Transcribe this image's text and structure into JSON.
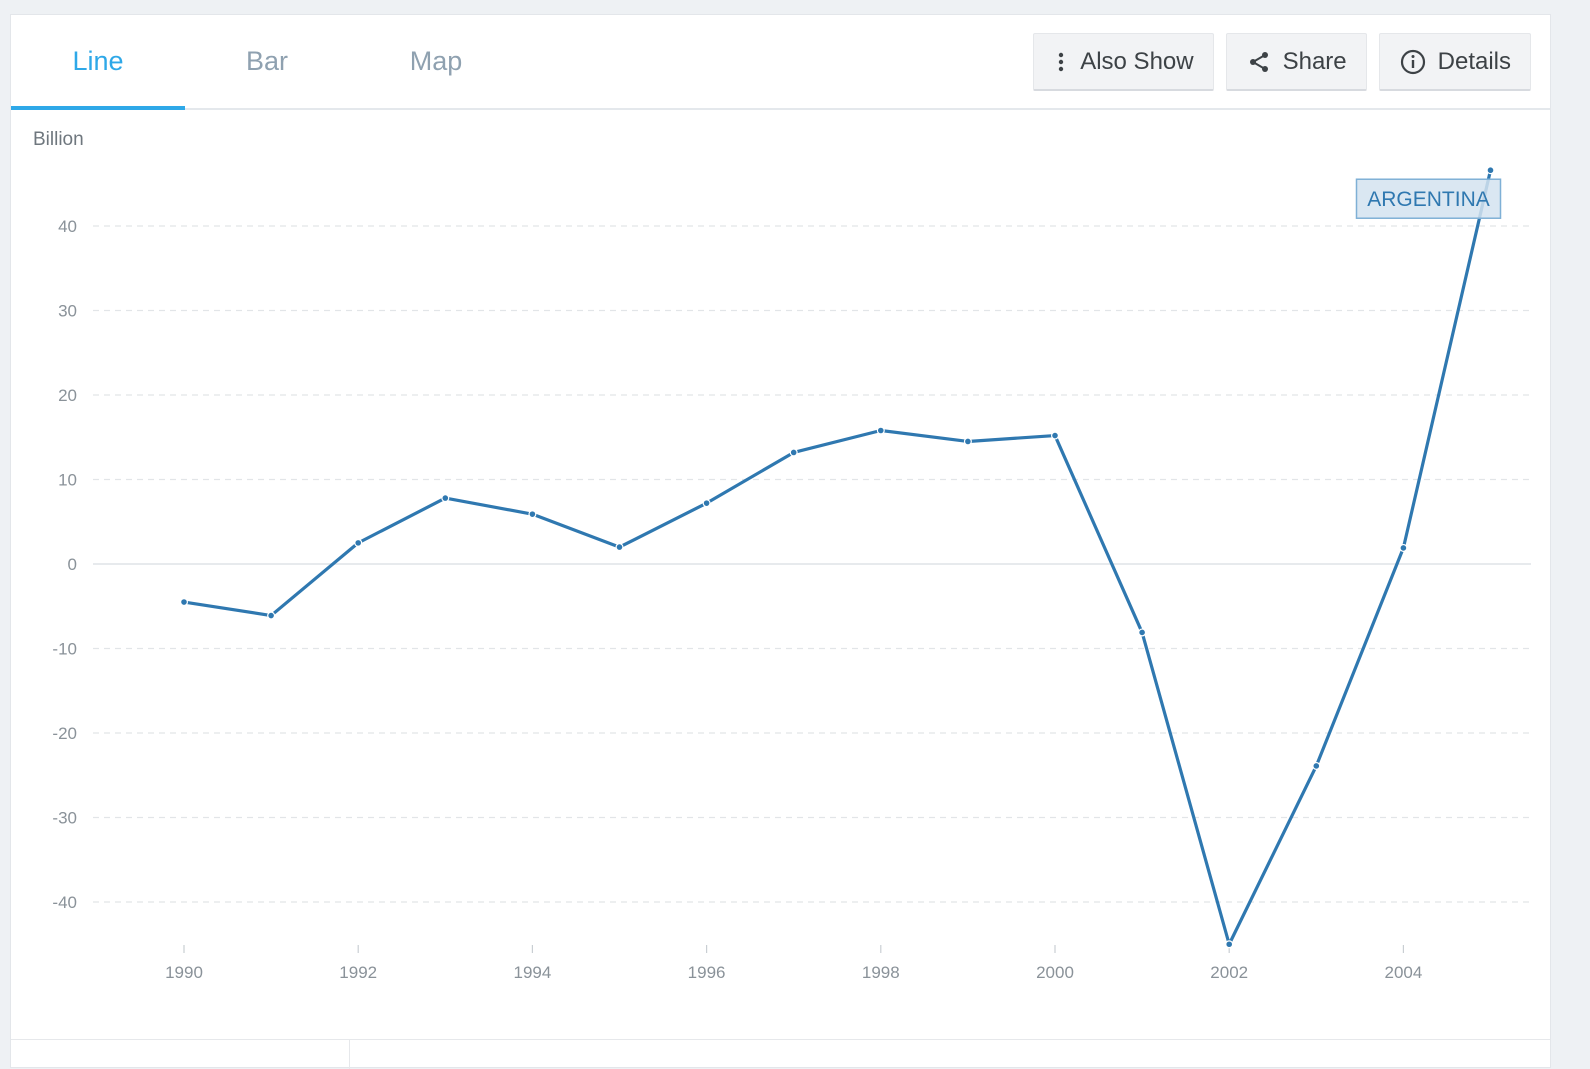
{
  "tabs": [
    {
      "label": "Line",
      "active": true
    },
    {
      "label": "Bar",
      "active": false
    },
    {
      "label": "Map",
      "active": false
    }
  ],
  "actions": {
    "also_show_label": "Also Show",
    "share_label": "Share",
    "details_label": "Details"
  },
  "colors": {
    "accent": "#2ea8e8",
    "series": "#2f78b0",
    "label_bg": "#d3e3f0",
    "label_border": "#7fb0d6"
  },
  "chart_data": {
    "type": "line",
    "ylabel": "Billion",
    "xlabel": "",
    "x": [
      1990,
      1991,
      1992,
      1993,
      1994,
      1995,
      1996,
      1997,
      1998,
      1999,
      2000,
      2001,
      2002,
      2003,
      2004,
      2005
    ],
    "x_ticks": [
      "1990",
      "1992",
      "1994",
      "1996",
      "1998",
      "2000",
      "2002",
      "2004"
    ],
    "y_ticks": [
      "40",
      "30",
      "20",
      "10",
      "0",
      "-10",
      "-20",
      "-30",
      "-40"
    ],
    "ylim": [
      -45,
      45
    ],
    "grid": true,
    "series": [
      {
        "name": "ARGENTINA",
        "values": [
          -4.5,
          -6.1,
          2.5,
          7.8,
          5.9,
          2.0,
          7.2,
          13.2,
          15.8,
          14.5,
          15.2,
          -8.1,
          -45.0,
          -23.9,
          1.9,
          46.6
        ]
      }
    ]
  }
}
